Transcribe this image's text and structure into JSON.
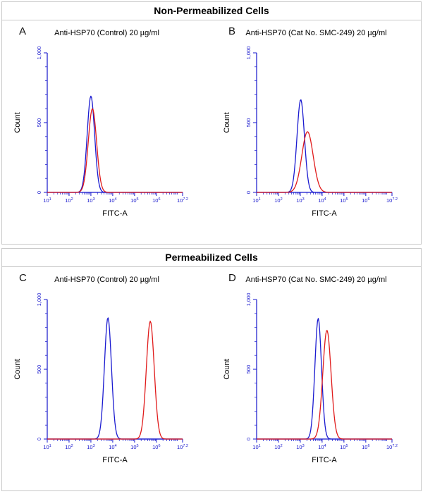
{
  "figure": {
    "background": "#ffffff",
    "border_color": "#c9c9c9"
  },
  "axes_style": {
    "axis_color": "#1414cc",
    "tick_label_color": "#1414cc",
    "axis_title_color": "#000000"
  },
  "sections": [
    {
      "title": "Non-Permeabilized Cells",
      "panels": [
        {
          "letter": "A",
          "title": "Anti-HSP70 (Control) 20 µg/ml",
          "chart_index": 0
        },
        {
          "letter": "B",
          "title": "Anti-HSP70 (Cat No. SMC-249) 20 µg/ml",
          "chart_index": 1
        }
      ]
    },
    {
      "title": "Permeabilized Cells",
      "panels": [
        {
          "letter": "C",
          "title": "Anti-HSP70 (Control) 20 µg/ml",
          "chart_index": 2
        },
        {
          "letter": "D",
          "title": "Anti-HSP70 (Cat No. SMC-249) 20 µg/ml",
          "chart_index": 3
        }
      ]
    }
  ],
  "chart_data": [
    {
      "type": "line",
      "panel": "A",
      "title": "Anti-HSP70 (Control) 20 µg/ml",
      "xlabel": "FITC-A",
      "ylabel": "Count",
      "x_scale": "log10",
      "xlim_log10": [
        1,
        7.2
      ],
      "ylim": [
        0,
        1000
      ],
      "x_tick_log_values": [
        1,
        2,
        3,
        4,
        5,
        6,
        7.2
      ],
      "x_tick_exponents": [
        "1",
        "2",
        "3",
        "4",
        "5",
        "6",
        "7.2"
      ],
      "y_tick_values": [
        0,
        500,
        1000
      ],
      "y_ticks": [
        "0",
        "500",
        "1,000"
      ],
      "series": [
        {
          "name": "blue",
          "color": "#1a1ad0",
          "peak_x": 1000,
          "peak_log10_x": 3.0,
          "peak_count": 690,
          "sigma_log10": 0.17
        },
        {
          "name": "red",
          "color": "#e01b1b",
          "peak_x": 1170,
          "peak_log10_x": 3.07,
          "peak_count": 600,
          "sigma_log10": 0.19
        }
      ]
    },
    {
      "type": "line",
      "panel": "B",
      "title": "Anti-HSP70 (Cat No. SMC-249) 20 µg/ml",
      "xlabel": "FITC-A",
      "ylabel": "Count",
      "x_scale": "log10",
      "xlim_log10": [
        1,
        7.2
      ],
      "ylim": [
        0,
        1000
      ],
      "x_tick_log_values": [
        1,
        2,
        3,
        4,
        5,
        6,
        7.2
      ],
      "x_tick_exponents": [
        "1",
        "2",
        "3",
        "4",
        "5",
        "6",
        "7.2"
      ],
      "y_tick_values": [
        0,
        500,
        1000
      ],
      "y_ticks": [
        "0",
        "500",
        "1,000"
      ],
      "series": [
        {
          "name": "blue",
          "color": "#1a1ad0",
          "peak_x": 1050,
          "peak_log10_x": 3.02,
          "peak_count": 665,
          "sigma_log10": 0.17
        },
        {
          "name": "red",
          "color": "#e01b1b",
          "peak_x": 2140,
          "peak_log10_x": 3.33,
          "peak_count": 435,
          "sigma_log10": 0.26
        }
      ]
    },
    {
      "type": "line",
      "panel": "C",
      "title": "Anti-HSP70 (Control) 20 µg/ml",
      "xlabel": "FITC-A",
      "ylabel": "Count",
      "x_scale": "log10",
      "xlim_log10": [
        1,
        7.2
      ],
      "ylim": [
        0,
        1000
      ],
      "x_tick_log_values": [
        1,
        2,
        3,
        4,
        5,
        6,
        7.2
      ],
      "x_tick_exponents": [
        "1",
        "2",
        "3",
        "4",
        "5",
        "6",
        "7.2"
      ],
      "y_tick_values": [
        0,
        500,
        1000
      ],
      "y_ticks": [
        "0",
        "500",
        "1,000"
      ],
      "series": [
        {
          "name": "blue",
          "color": "#1a1ad0",
          "peak_x": 6000,
          "peak_log10_x": 3.78,
          "peak_count": 870,
          "sigma_log10": 0.16
        },
        {
          "name": "red",
          "color": "#e01b1b",
          "peak_x": 525000,
          "peak_log10_x": 5.72,
          "peak_count": 845,
          "sigma_log10": 0.18
        }
      ]
    },
    {
      "type": "line",
      "panel": "D",
      "title": "Anti-HSP70 (Cat No. SMC-249) 20 µg/ml",
      "xlabel": "FITC-A",
      "ylabel": "Count",
      "x_scale": "log10",
      "xlim_log10": [
        1,
        7.2
      ],
      "ylim": [
        0,
        1000
      ],
      "x_tick_log_values": [
        1,
        2,
        3,
        4,
        5,
        6,
        7.2
      ],
      "x_tick_exponents": [
        "1",
        "2",
        "3",
        "4",
        "5",
        "6",
        "7.2"
      ],
      "y_tick_values": [
        0,
        500,
        1000
      ],
      "y_ticks": [
        "0",
        "500",
        "1,000"
      ],
      "series": [
        {
          "name": "blue",
          "color": "#1a1ad0",
          "peak_x": 6600,
          "peak_log10_x": 3.82,
          "peak_count": 865,
          "sigma_log10": 0.15
        },
        {
          "name": "red",
          "color": "#e01b1b",
          "peak_x": 16600,
          "peak_log10_x": 4.22,
          "peak_count": 780,
          "sigma_log10": 0.19
        }
      ]
    }
  ]
}
